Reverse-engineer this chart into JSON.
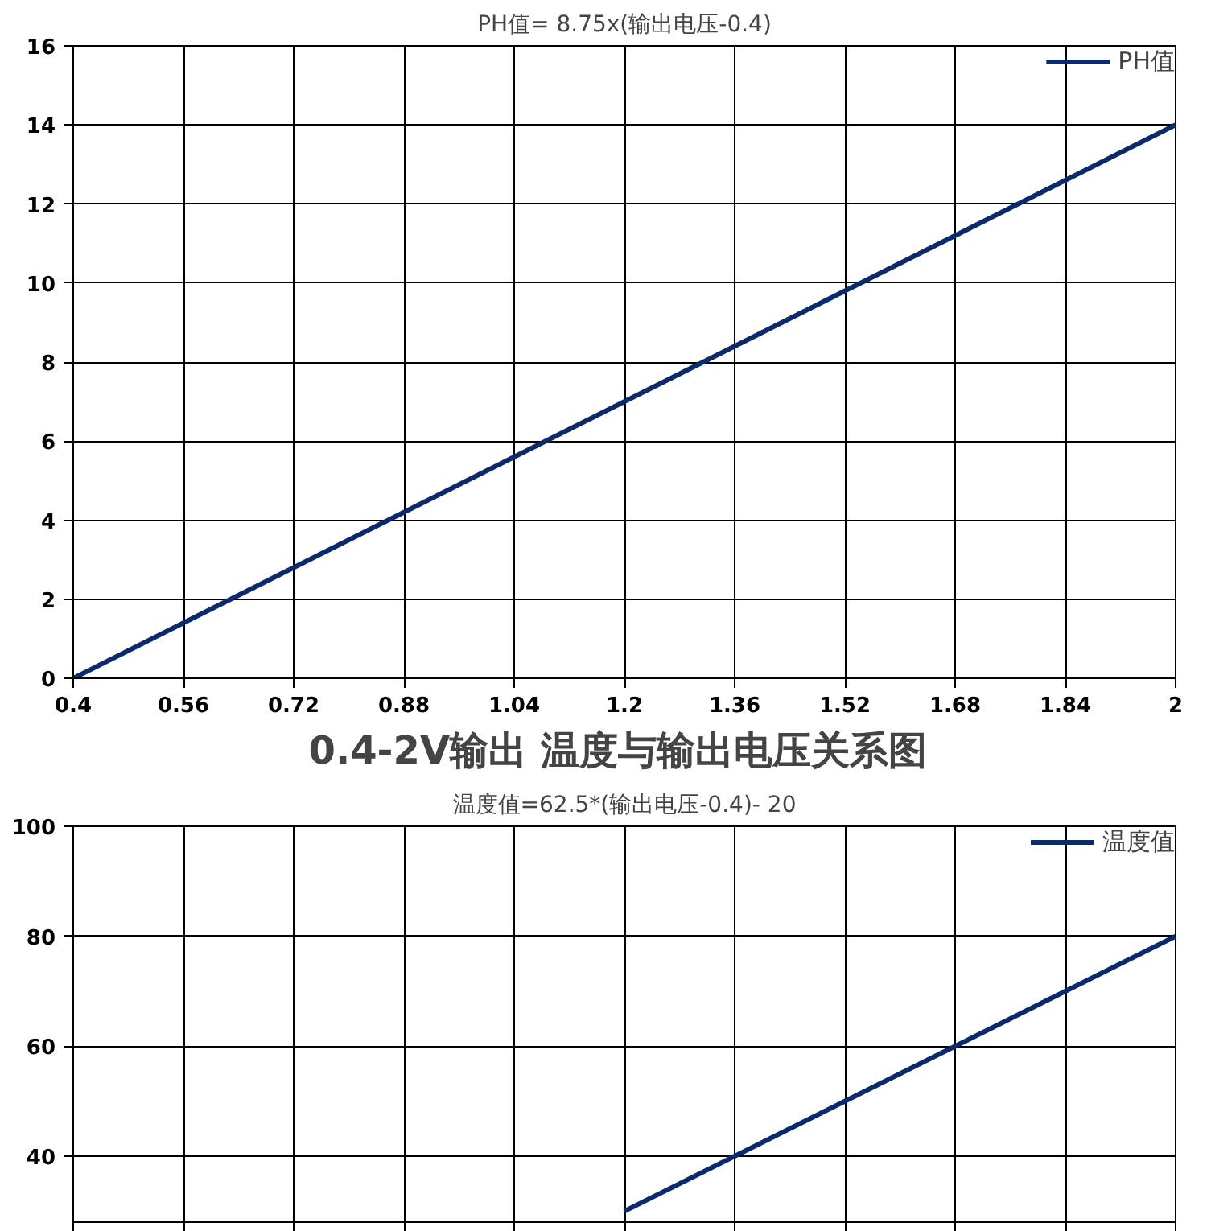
{
  "chart_data": [
    {
      "type": "line",
      "annotations": [
        "PH值= 8.75x(输出电压-0.4)"
      ],
      "xlim": [
        0.4,
        2
      ],
      "xticks": [
        0.4,
        0.56,
        0.72,
        0.88,
        1.04,
        1.2,
        1.36,
        1.52,
        1.68,
        1.84,
        2
      ],
      "ylim": [
        0,
        16
      ],
      "yticks": [
        0,
        2,
        4,
        6,
        8,
        10,
        12,
        14,
        16
      ],
      "grid": true,
      "legend": "top right",
      "series": [
        {
          "name": "PH值",
          "color": "#0a2a6b",
          "x": [
            0.4,
            2
          ],
          "values": [
            0,
            14
          ]
        }
      ]
    },
    {
      "type": "line",
      "title": "0.4-2V输出  温度与输出电压关系图",
      "annotations": [
        "温度值=62.5*(输出电压-0.4)- 20"
      ],
      "xlim": [
        0.4,
        2
      ],
      "xticks": [
        {
          "value": 0.4,
          "label": null
        },
        {
          "value": 0.56,
          "label": null
        },
        {
          "value": 0.72,
          "label": null
        },
        {
          "value": 0.88,
          "label": null
        },
        {
          "value": 1.04,
          "label": null
        },
        {
          "value": 1.2,
          "label": null
        },
        {
          "value": 1.36,
          "label": null
        },
        {
          "value": 1.52,
          "label": null
        },
        {
          "value": 1.68,
          "label": null
        },
        {
          "value": 1.84,
          "label": null
        },
        {
          "value": 2,
          "label": null
        }
      ],
      "ylim": [
        28,
        100
      ],
      "yticks": [
        40,
        60,
        80,
        100
      ],
      "grid": true,
      "legend": "top right",
      "tick_labels": "y",
      "series": [
        {
          "name": "温度值",
          "color": "#0a2a6b",
          "x": [
            1.2,
            2
          ],
          "values": [
            30,
            80
          ]
        }
      ]
    }
  ]
}
